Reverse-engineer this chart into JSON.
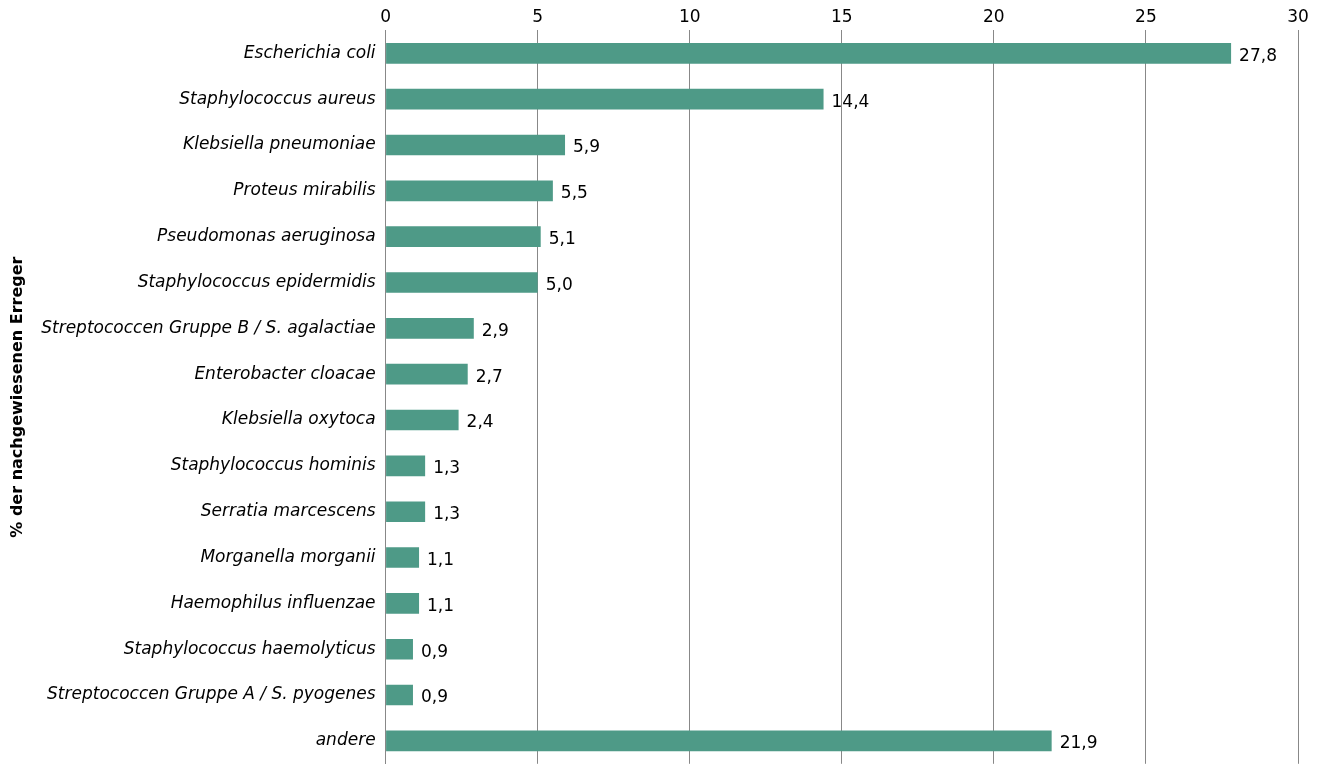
{
  "chart_data": {
    "type": "bar",
    "orientation": "horizontal",
    "ylabel": "% der nachgewiesenen Erreger",
    "categories": [
      "Escherichia coli",
      "Staphylococcus aureus",
      "Klebsiella pneumoniae",
      "Proteus mirabilis",
      "Pseudomonas aeruginosa",
      "Staphylococcus epidermidis",
      "Streptococcen Gruppe B / S. agalactiae",
      "Enterobacter cloacae",
      "Klebsiella oxytoca",
      "Staphylococcus hominis",
      "Serratia marcescens",
      "Morganella morganii",
      "Haemophilus influenzae",
      "Staphylococcus haemolyticus",
      "Streptococcen Gruppe A / S. pyogenes",
      "andere"
    ],
    "values": [
      27.8,
      14.4,
      5.9,
      5.5,
      5.1,
      5.0,
      2.9,
      2.7,
      2.4,
      1.3,
      1.3,
      1.1,
      1.1,
      0.9,
      0.9,
      21.9
    ],
    "value_labels": [
      "27,8",
      "14,4",
      "5,9",
      "5,5",
      "5,1",
      "5,0",
      "2,9",
      "2,7",
      "2,4",
      "1,3",
      "1,3",
      "1,1",
      "1,1",
      "0,9",
      "0,9",
      "21,9"
    ],
    "color": "#4e9a87",
    "xlim": [
      0,
      30
    ],
    "xticks": [
      0,
      5,
      10,
      15,
      20,
      25,
      30
    ],
    "grid": "x",
    "legend": false
  }
}
